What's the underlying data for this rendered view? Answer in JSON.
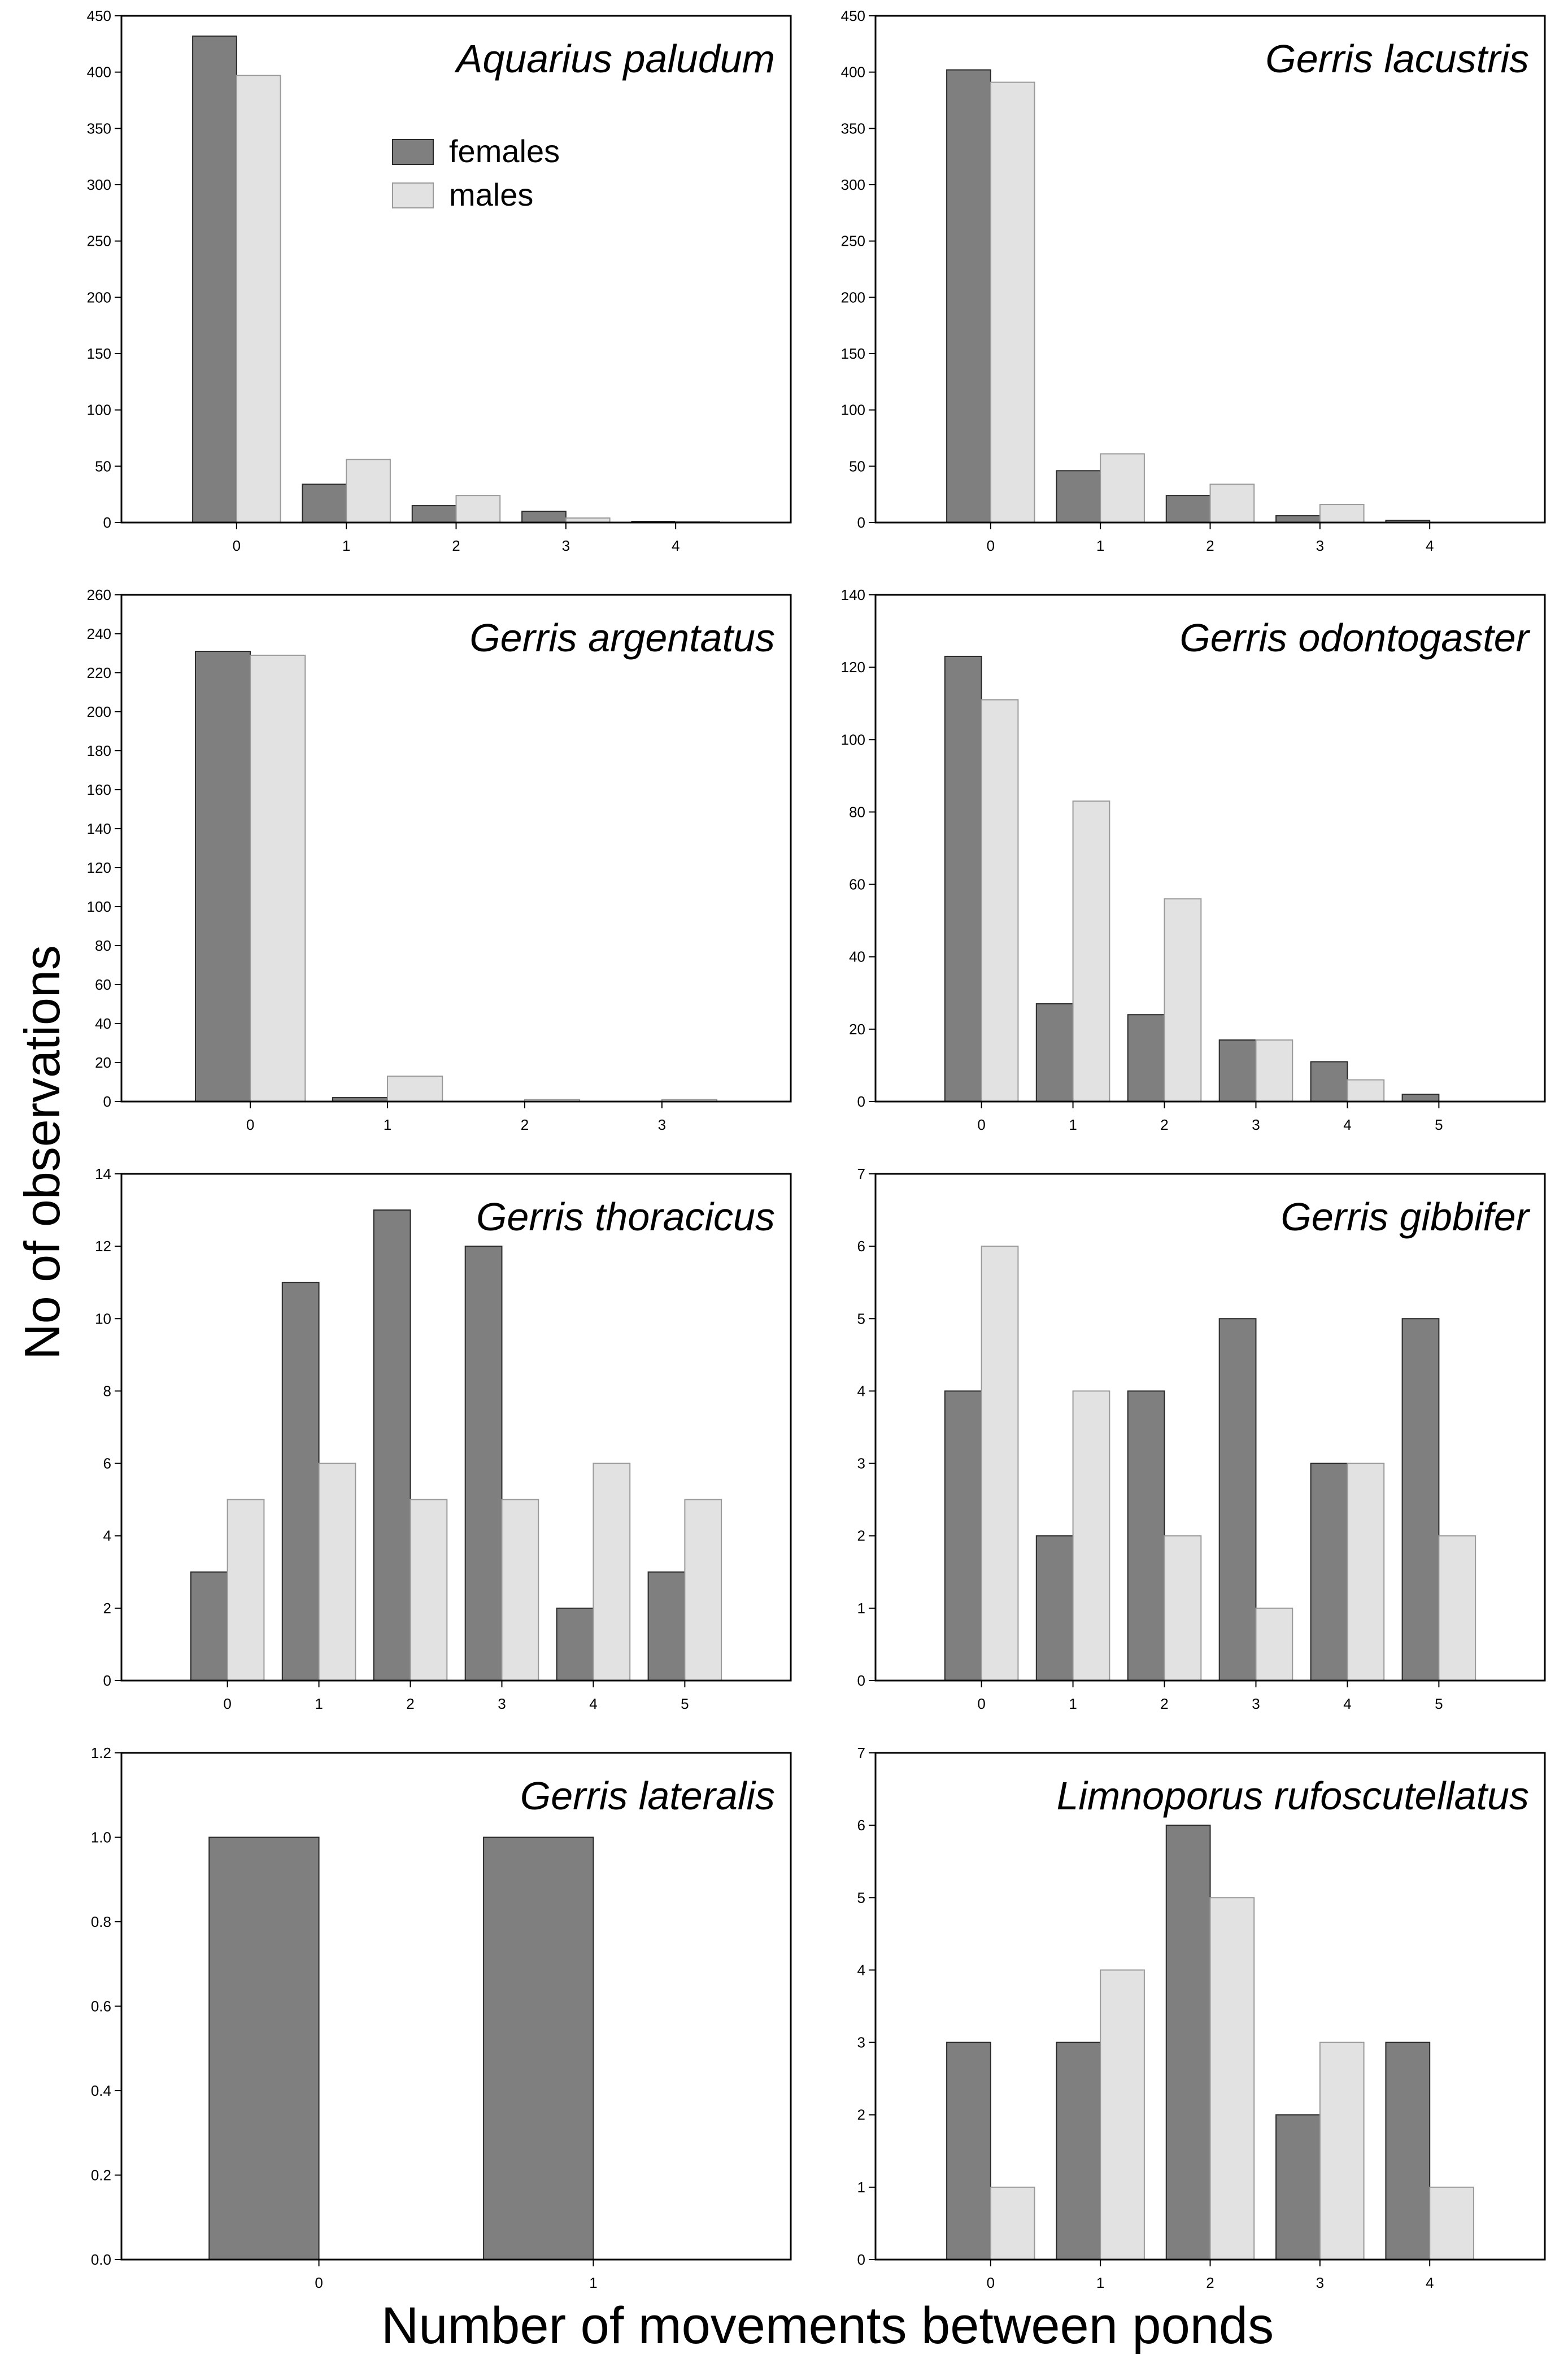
{
  "figure": {
    "ylabel": "No of observations",
    "xlabel": "Number of movements between ponds",
    "legend": [
      {
        "label": "females",
        "color": "#7f7f7f"
      },
      {
        "label": "males",
        "color": "#e2e2e2"
      }
    ]
  },
  "chart_data": [
    {
      "type": "bar",
      "title": "Aquarius paludum",
      "categories": [
        "0",
        "1",
        "2",
        "3",
        "4"
      ],
      "yticks": [
        "0",
        "50",
        "100",
        "150",
        "200",
        "250",
        "300",
        "350",
        "400",
        "450"
      ],
      "ylim": [
        0,
        450
      ],
      "series": [
        {
          "name": "females",
          "values": [
            432,
            34,
            15,
            10,
            1
          ]
        },
        {
          "name": "males",
          "values": [
            397,
            56,
            24,
            4,
            1
          ]
        }
      ]
    },
    {
      "type": "bar",
      "title": "Gerris lacustris",
      "categories": [
        "0",
        "1",
        "2",
        "3",
        "4"
      ],
      "yticks": [
        "0",
        "50",
        "100",
        "150",
        "200",
        "250",
        "300",
        "350",
        "400",
        "450"
      ],
      "ylim": [
        0,
        450
      ],
      "series": [
        {
          "name": "females",
          "values": [
            402,
            46,
            24,
            6,
            2
          ]
        },
        {
          "name": "males",
          "values": [
            391,
            61,
            34,
            16,
            0
          ]
        }
      ]
    },
    {
      "type": "bar",
      "title": "Gerris argentatus",
      "categories": [
        "0",
        "1",
        "2",
        "3"
      ],
      "yticks": [
        "0",
        "20",
        "40",
        "60",
        "80",
        "100",
        "120",
        "140",
        "160",
        "180",
        "200",
        "220",
        "240",
        "260"
      ],
      "ylim": [
        0,
        260
      ],
      "series": [
        {
          "name": "females",
          "values": [
            231,
            2,
            0,
            0
          ]
        },
        {
          "name": "males",
          "values": [
            229,
            13,
            1,
            1
          ]
        }
      ]
    },
    {
      "type": "bar",
      "title": "Gerris odontogaster",
      "categories": [
        "0",
        "1",
        "2",
        "3",
        "4",
        "5"
      ],
      "yticks": [
        "0",
        "20",
        "40",
        "60",
        "80",
        "100",
        "120",
        "140"
      ],
      "ylim": [
        0,
        140
      ],
      "series": [
        {
          "name": "females",
          "values": [
            123,
            27,
            24,
            17,
            11,
            2
          ]
        },
        {
          "name": "males",
          "values": [
            111,
            83,
            56,
            17,
            6,
            0
          ]
        }
      ]
    },
    {
      "type": "bar",
      "title": "Gerris thoracicus",
      "categories": [
        "0",
        "1",
        "2",
        "3",
        "4",
        "5"
      ],
      "yticks": [
        "0",
        "2",
        "4",
        "6",
        "8",
        "10",
        "12",
        "14"
      ],
      "ylim": [
        0,
        14
      ],
      "series": [
        {
          "name": "females",
          "values": [
            3,
            11,
            13,
            12,
            2,
            3
          ]
        },
        {
          "name": "males",
          "values": [
            5,
            6,
            5,
            5,
            6,
            5
          ]
        }
      ]
    },
    {
      "type": "bar",
      "title": "Gerris gibbifer",
      "categories": [
        "0",
        "1",
        "2",
        "3",
        "4",
        "5"
      ],
      "yticks": [
        "0",
        "1",
        "2",
        "3",
        "4",
        "5",
        "6",
        "7"
      ],
      "ylim": [
        0,
        7
      ],
      "series": [
        {
          "name": "females",
          "values": [
            4,
            2,
            4,
            5,
            3,
            5
          ]
        },
        {
          "name": "males",
          "values": [
            6,
            4,
            2,
            1,
            3,
            2
          ]
        }
      ]
    },
    {
      "type": "bar",
      "title": "Gerris lateralis",
      "categories": [
        "0",
        "1"
      ],
      "yticks": [
        "0.0",
        "0.2",
        "0.4",
        "0.6",
        "0.8",
        "1.0",
        "1.2"
      ],
      "ylim": [
        0,
        1.2
      ],
      "series": [
        {
          "name": "females",
          "values": [
            1,
            1
          ]
        },
        {
          "name": "males",
          "values": [
            0,
            0
          ]
        }
      ]
    },
    {
      "type": "bar",
      "title": "Limnoporus rufoscutellatus",
      "categories": [
        "0",
        "1",
        "2",
        "3",
        "4"
      ],
      "yticks": [
        "0",
        "1",
        "2",
        "3",
        "4",
        "5",
        "6",
        "7"
      ],
      "ylim": [
        0,
        7
      ],
      "series": [
        {
          "name": "females",
          "values": [
            3,
            3,
            6,
            2,
            3
          ]
        },
        {
          "name": "males",
          "values": [
            1,
            4,
            5,
            3,
            1
          ]
        }
      ]
    }
  ]
}
